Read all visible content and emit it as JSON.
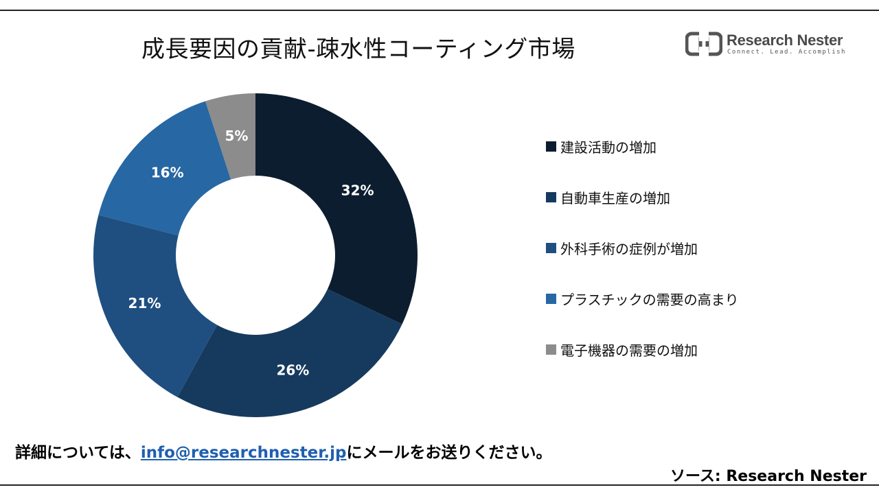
{
  "title": "成長要因の貢献-疎水性コーティング市場",
  "logo": {
    "name": "Research Nester",
    "tagline": "Connect. Lead. Accomplish"
  },
  "chart_data": {
    "type": "pie",
    "style": "donut",
    "title": "成長要因の貢献-疎水性コーティング市場",
    "labels": [
      "建設活動の増加",
      "自動車生産の増加",
      "外科手術の症例が増加",
      "プラスチックの需要の高まり",
      "電子機器の需要の増加"
    ],
    "values": [
      32,
      26,
      21,
      16,
      5
    ],
    "value_labels": [
      "32%",
      "26%",
      "21%",
      "16%",
      "5%"
    ],
    "colors": [
      "#0c1d30",
      "#163a5e",
      "#1f4f80",
      "#2767a3",
      "#8c8c8c"
    ],
    "legend_position": "right",
    "start_angle_deg": 0,
    "direction": "clockwise"
  },
  "footer": {
    "contact_prefix": "詳細については、",
    "contact_email": "info@researchnester.jp",
    "contact_suffix": "にメールをお送りください。",
    "source": "ソース: Research Nester"
  }
}
